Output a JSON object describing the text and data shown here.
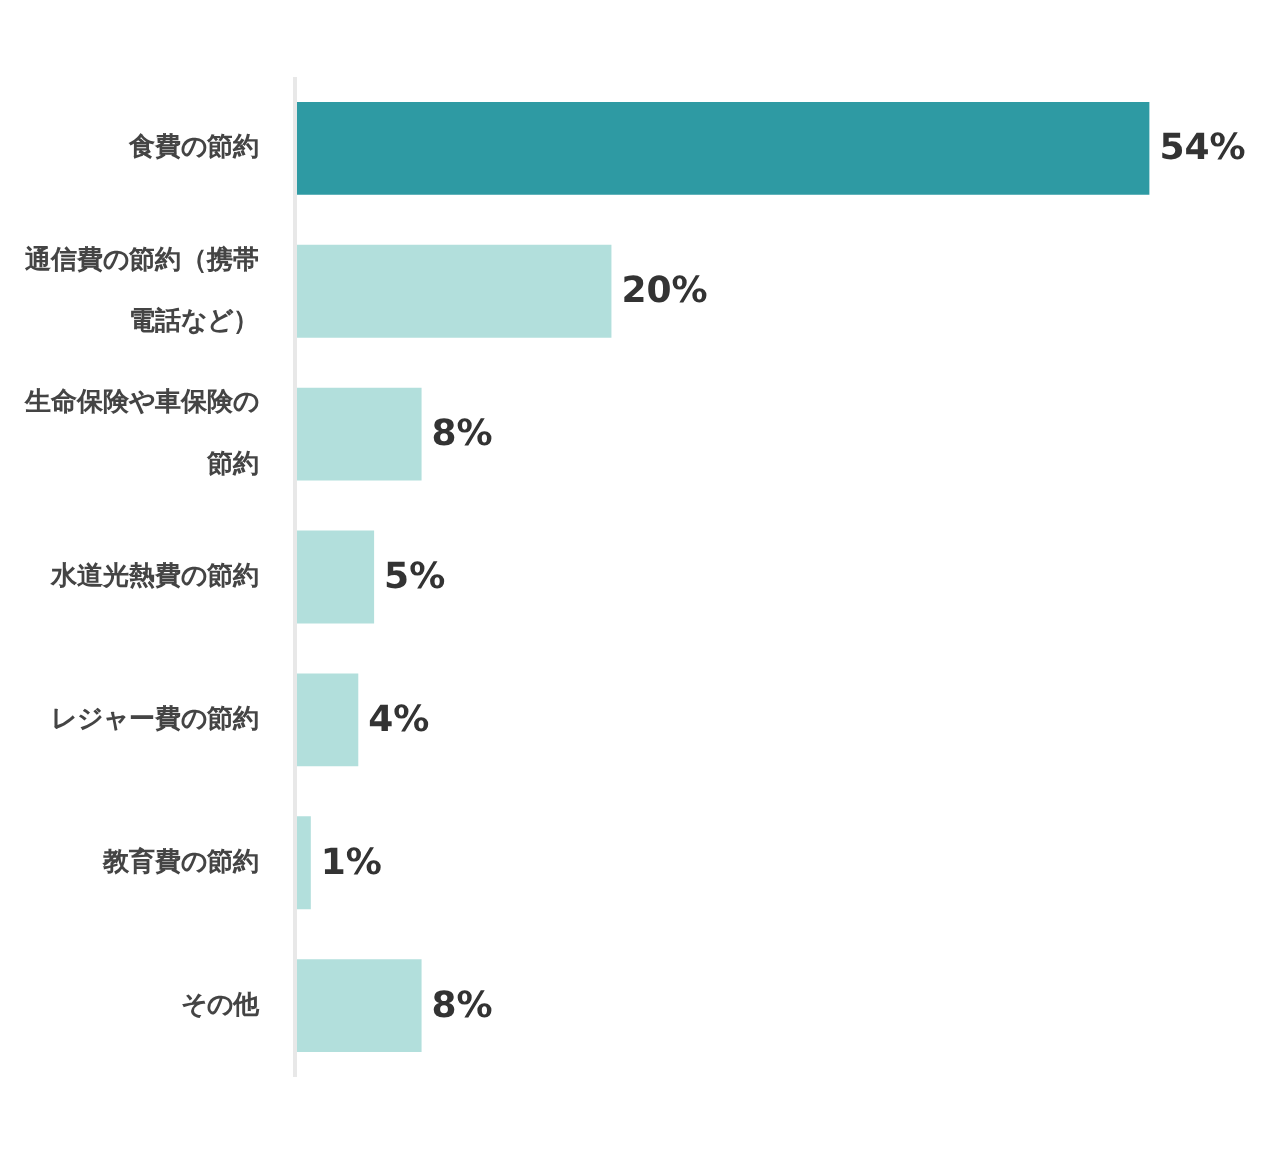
{
  "chart_data": {
    "type": "bar",
    "orientation": "horizontal",
    "categories": [
      "食費の節約",
      "通信費の節約（携帯電話など）",
      "生命保険や車保険の節約",
      "水道光熱費の節約",
      "レジャー費の節約",
      "教育費の節約",
      "その他"
    ],
    "values": [
      54,
      20,
      8,
      5,
      4,
      1,
      8
    ],
    "colors": [
      "#2e9aa3",
      "#b2dfdc",
      "#b2dfdc",
      "#b2dfdc",
      "#b2dfdc",
      "#b2dfdc",
      "#b2dfdc"
    ],
    "value_labels": [
      "54%",
      "20%",
      "8%",
      "5%",
      "4%",
      "1%",
      "8%"
    ],
    "tick_labels": "y"
  }
}
